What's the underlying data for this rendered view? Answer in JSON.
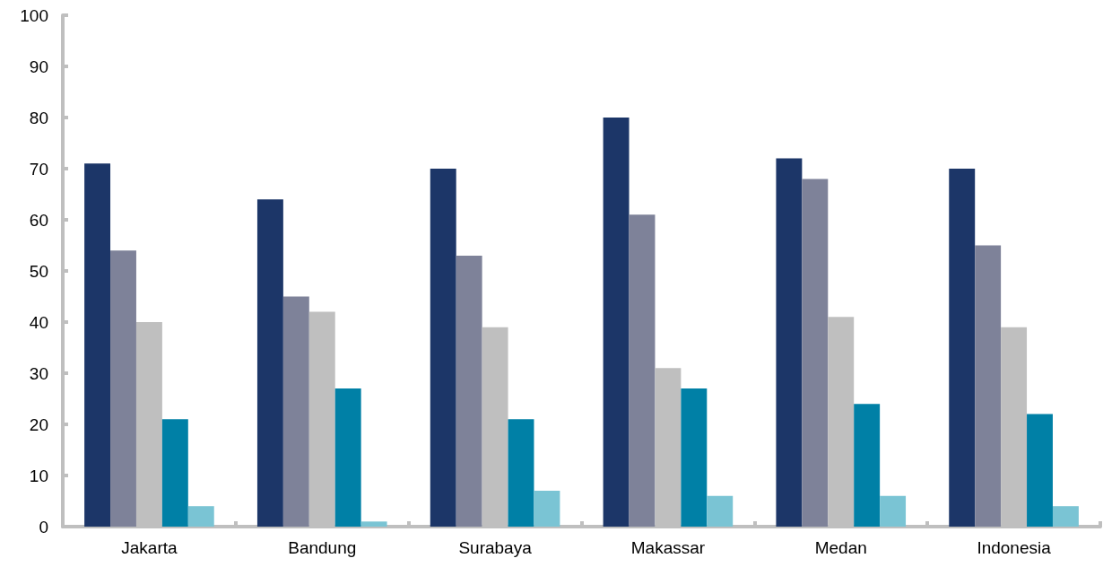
{
  "chart_data": {
    "type": "bar",
    "categories": [
      "Jakarta",
      "Bandung",
      "Surabaya",
      "Makassar",
      "Medan",
      "Indonesia"
    ],
    "series": [
      {
        "color": "#1c3668",
        "values": [
          71,
          64,
          70,
          80,
          72,
          70
        ]
      },
      {
        "color": "#7e8299",
        "values": [
          54,
          45,
          53,
          61,
          68,
          55
        ]
      },
      {
        "color": "#bfbfbf",
        "values": [
          40,
          42,
          39,
          31,
          41,
          39
        ]
      },
      {
        "color": "#0080a6",
        "values": [
          21,
          27,
          21,
          27,
          24,
          22
        ]
      },
      {
        "color": "#7ac4d4",
        "values": [
          4,
          1,
          7,
          6,
          6,
          4
        ]
      }
    ],
    "ylim": [
      0,
      100
    ],
    "yticks": [
      0,
      10,
      20,
      30,
      40,
      50,
      60,
      70,
      80,
      90,
      100
    ]
  }
}
